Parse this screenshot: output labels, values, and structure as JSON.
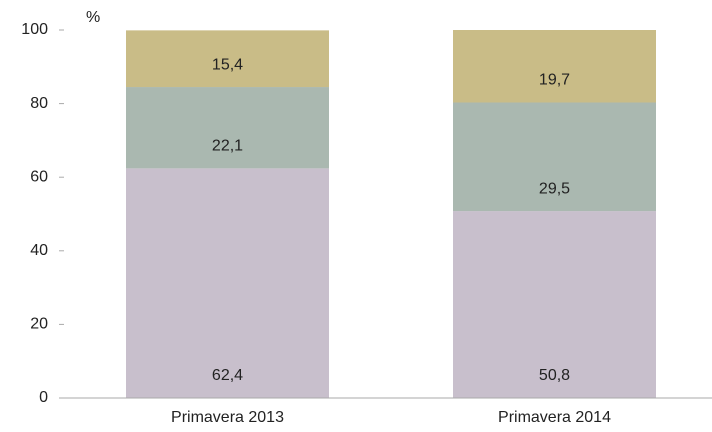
{
  "chart_data": {
    "type": "stacked_bar",
    "y_label": "%",
    "categories": [
      "Primavera 2013",
      "Primavera 2014"
    ],
    "series": [
      {
        "color": "#c8bfcc",
        "values": [
          62.4,
          50.8
        ],
        "value_labels": [
          "62,4",
          "50,8"
        ]
      },
      {
        "color": "#aab8b0",
        "values": [
          22.1,
          29.5
        ],
        "value_labels": [
          "22,1",
          "29,5"
        ]
      },
      {
        "color": "#c9bc87",
        "values": [
          15.4,
          19.7
        ],
        "value_labels": [
          "15,4",
          "19,7"
        ]
      }
    ],
    "ylim": [
      0,
      100
    ],
    "yticks": [
      0,
      20,
      40,
      60,
      80,
      100
    ],
    "grid": false
  }
}
